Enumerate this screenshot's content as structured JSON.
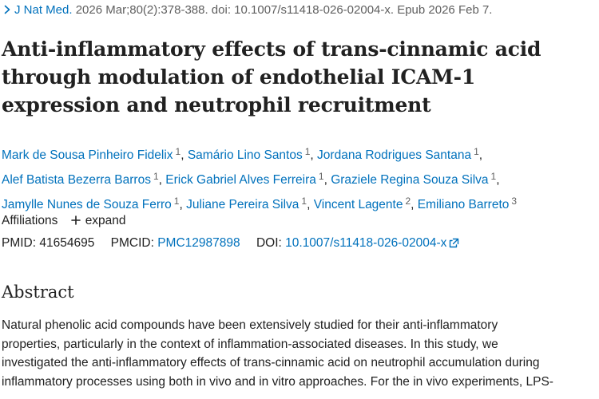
{
  "citation": {
    "journal": "J Nat Med.",
    "details": "2026 Mar;80(2):378-388. doi: 10.1007/s11418-026-02004-x. Epub 2026 Feb 7."
  },
  "article": {
    "title": "Anti-inflammatory effects of trans-cinnamic acid through modulation of endothelial ICAM-1 expression and neutrophil recruitment"
  },
  "authors": [
    {
      "name": "Mark de Sousa Pinheiro Fidelix",
      "aff": "1"
    },
    {
      "name": "Samário Lino Santos",
      "aff": "1"
    },
    {
      "name": "Jordana Rodrigues Santana",
      "aff": "1"
    },
    {
      "name": "Alef Batista Bezerra Barros",
      "aff": "1"
    },
    {
      "name": "Erick Gabriel Alves Ferreira",
      "aff": "1"
    },
    {
      "name": "Graziele Regina Souza Silva",
      "aff": "1"
    },
    {
      "name": "Jamylle Nunes de Souza Ferro",
      "aff": "1"
    },
    {
      "name": "Juliane Pereira Silva",
      "aff": "1"
    },
    {
      "name": "Vincent Lagente",
      "aff": "2"
    },
    {
      "name": "Emiliano Barreto",
      "aff": "3"
    }
  ],
  "affiliations": {
    "label": "Affiliations",
    "expand_label": "expand"
  },
  "identifiers": {
    "pmid_label": "PMID:",
    "pmid": "41654695",
    "pmcid_label": "PMCID:",
    "pmcid": "PMC12987898",
    "doi_label": "DOI:",
    "doi": "10.1007/s11418-026-02004-x"
  },
  "abstract": {
    "heading": "Abstract",
    "lines": [
      "Natural phenolic acid compounds have been extensively studied for their anti-inflammatory",
      "properties, particularly in the context of inflammation-associated diseases. In this study, we",
      "investigated the anti-inflammatory effects of trans-cinnamic acid on neutrophil accumulation during",
      "inflammatory processes using both in vivo and in vitro approaches. For the in vivo experiments, LPS-"
    ]
  },
  "colors": {
    "link": "#0071bc",
    "text": "#212121",
    "muted": "#5f5f5f"
  },
  "icons": {
    "journal": "chevron-right-icon",
    "expand": "plus-icon",
    "doi": "external-link-icon"
  }
}
